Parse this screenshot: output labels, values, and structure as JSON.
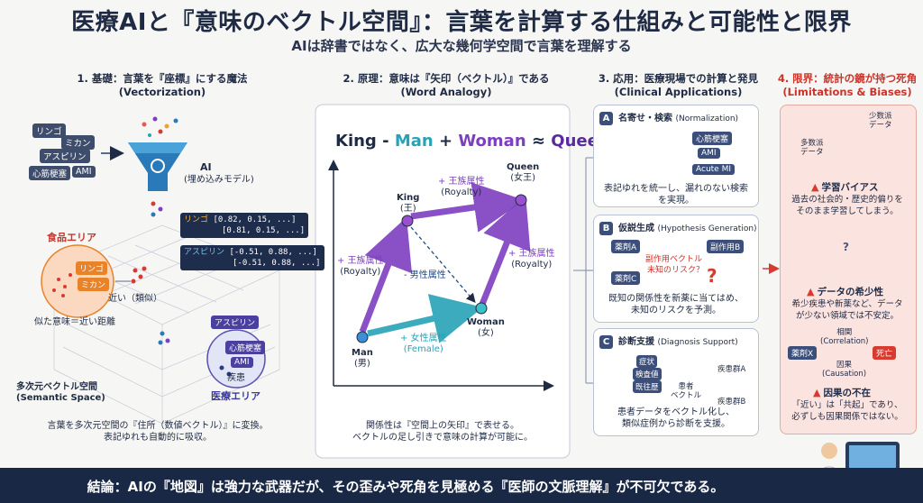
{
  "header": {
    "title": "医療AIと『意味のベクトル空間』：言葉を計算する仕組みと可能性と限界",
    "subtitle": "AIは辞書ではなく、広大な幾何学空間で言葉を理解する"
  },
  "section1": {
    "heading_line1": "1. 基礎：言葉を『座標』にする魔法",
    "heading_line2": "(Vectorization)",
    "words": [
      "リンゴ",
      "ミカン",
      "アスピリン",
      "心筋梗塞",
      "AMI"
    ],
    "ai_label": "AI",
    "ai_sub": "(埋め込みモデル)",
    "vectors": [
      {
        "word": "リンゴ",
        "v1": "[0.82, 0.15, ...]",
        "v2": "[0.81, 0.15, ...]"
      },
      {
        "word": "アスピリン",
        "v1": "[-0.51, 0.88, ...]",
        "v2": "[-0.51, 0.88, ...]"
      }
    ],
    "food_area": "食品エリア",
    "food_items": [
      "リンゴ",
      "ミカン"
    ],
    "near_label": "近い（類似）",
    "similar_label": "似た意味＝近い距離",
    "medical_items": [
      "アスピリン",
      "心筋梗塞",
      "AMI"
    ],
    "disease_label": "疾患",
    "medical_area": "医療エリア",
    "space_label_line1": "多次元ベクトル空間",
    "space_label_line2": "(Semantic Space)",
    "caption_line1": "言葉を多次元空間の『住所（数値ベクトル）』に変換。",
    "caption_line2": "表記ゆれも自動的に吸収。"
  },
  "section2": {
    "heading_line1": "2. 原理：意味は『矢印（ベクトル）』である",
    "heading_line2": "(Word Analogy)",
    "eq_king": "King",
    "eq_minus": " - ",
    "eq_man": "Man",
    "eq_plus": " + ",
    "eq_woman": "Woman",
    "eq_approx": " ≈ ",
    "eq_queen": "Queen",
    "king_en": "King",
    "king_ja": "(王)",
    "queen_en": "Queen",
    "queen_ja": "(女王)",
    "man_en": "Man",
    "man_ja": "(男)",
    "woman_en": "Woman",
    "woman_ja": "(女)",
    "royal_ja": "+ 王族属性",
    "royal_en": "(Royalty)",
    "male_attr": "- 男性属性",
    "female_ja": "+ 女性属性",
    "female_en": "(Female)",
    "caption_line1": "関係性は『空間上の矢印』で表せる。",
    "caption_line2": "ベクトルの足し引きで意味の計算が可能に。"
  },
  "section3": {
    "heading_line1": "3. 応用：医療現場での計算と発見",
    "heading_line2": "(Clinical Applications)",
    "cardA": {
      "letter": "A",
      "title": "名寄せ・検索",
      "title_en": "(Normalization)",
      "terms": [
        "心筋梗塞",
        "AMI",
        "Acute MI"
      ],
      "desc_line1": "表記ゆれを統一し、漏れのない検索",
      "desc_line2": "を実現。"
    },
    "cardB": {
      "letter": "B",
      "title": "仮説生成",
      "title_en": "(Hypothesis Generation)",
      "drugA": "薬剤A",
      "side_effect_b": "副作用B",
      "side_vector": "副作用ベクトル",
      "drugC": "薬剤C",
      "unknown_risk": "未知のリスク？",
      "qmark": "?",
      "desc_line1": "既知の関係性を新薬に当てはめ、",
      "desc_line2": "未知のリスクを予測。"
    },
    "cardC": {
      "letter": "C",
      "title": "診断支援",
      "title_en": "(Diagnosis Support)",
      "inputs": [
        "症状",
        "検査値",
        "既往歴"
      ],
      "patient_line1": "患者",
      "patient_line2": "ベクトル",
      "groupA": "疾患群A",
      "groupB": "疾患群B",
      "desc_line1": "患者データをベクトル化し、",
      "desc_line2": "類似症例から診断を支援。"
    }
  },
  "section4": {
    "heading_line1": "4. 限界：統計の鏡が持つ死角",
    "heading_line2": "(Limitations & Biases)",
    "majority_line1": "多数派",
    "majority_line2": "データ",
    "minority_line1": "少数派",
    "minority_line2": "データ",
    "bias_title": "学習バイアス",
    "bias_line1": "過去の社会的・歴史的偏りを",
    "bias_line2": "そのまま学習してしまう。",
    "qmark": "?",
    "scarcity_title": "データの希少性",
    "scarcity_line1": "希少疾患や新薬など、データ",
    "scarcity_line2": "が少ない領域では不安定。",
    "correlation_ja": "相関",
    "correlation_en": "(Correlation)",
    "drugX": "薬剤X",
    "death": "死亡",
    "causal_ja": "因果",
    "causal_en": "(Causation)",
    "causal_title": "因果の不在",
    "causal_line1": "「近い」は「共起」であり、",
    "causal_line2": "必ずしも因果関係ではない。"
  },
  "conclusion": "結論：AIの『地図』は強力な武器だが、その歪みや死角を見極める『医師の文脈理解』が不可欠である。",
  "colors": {
    "navy": "#192845",
    "purple": "#7d3fbf",
    "teal": "#27a3b8",
    "red": "#c9352b",
    "orange": "#e8832a"
  }
}
